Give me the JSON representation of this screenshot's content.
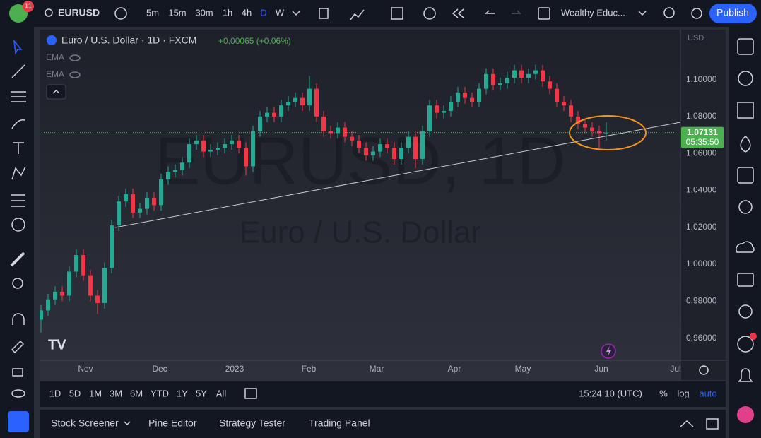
{
  "toolbar": {
    "badge": "11",
    "symbol": "EURUSD",
    "intervals": [
      "5m",
      "15m",
      "30m",
      "1h",
      "4h",
      "D",
      "W"
    ],
    "layout_name": "Wealthy Educ...",
    "publish": "Publish"
  },
  "legend": {
    "title": "Euro / U.S. Dollar · 1D · FXCM",
    "change": "+0.00065 (+0.06%)",
    "indicators": [
      "EMA",
      "EMA"
    ]
  },
  "chart_data": {
    "type": "candlestick",
    "watermark": [
      "EURUSD, 1D",
      "Euro / U.S. Dollar"
    ],
    "currency": "USD",
    "countdown": "05:35:50",
    "up_color": "#22ab94",
    "down_color": "#f23645",
    "last_price_color": "#4caf50",
    "open": [
      0.97,
      0.975,
      0.981,
      0.985,
      0.983,
      0.996,
      1.005,
      0.994,
      0.983,
      0.979,
      0.998,
      1.021,
      1.034,
      1.038,
      1.028,
      1.03,
      1.036,
      1.032,
      1.046,
      1.05,
      1.051,
      1.055,
      1.065,
      1.067,
      1.061,
      1.062,
      1.063,
      1.065,
      1.067,
      1.063,
      1.053,
      1.072,
      1.08,
      1.082,
      1.08,
      1.086,
      1.088,
      1.09,
      1.086,
      1.095,
      1.08,
      1.072,
      1.071,
      1.074,
      1.069,
      1.067,
      1.063,
      1.059,
      1.061,
      1.065,
      1.063,
      1.057,
      1.063,
      1.069,
      1.057,
      1.072,
      1.086,
      1.082,
      1.083,
      1.088,
      1.093,
      1.09,
      1.088,
      1.095,
      1.103,
      1.097,
      1.098,
      1.101,
      1.105,
      1.101,
      1.103,
      1.105,
      1.099,
      1.095,
      1.088,
      1.086,
      1.08,
      1.076,
      1.074,
      1.072,
      1.071
    ],
    "high": [
      0.978,
      0.984,
      0.988,
      0.988,
      0.999,
      1.008,
      1.008,
      0.997,
      0.986,
      1.001,
      1.024,
      1.037,
      1.041,
      1.041,
      1.033,
      1.039,
      1.039,
      1.049,
      1.053,
      1.054,
      1.058,
      1.068,
      1.07,
      1.07,
      1.065,
      1.066,
      1.068,
      1.07,
      1.07,
      1.066,
      1.075,
      1.083,
      1.085,
      1.085,
      1.089,
      1.091,
      1.093,
      1.093,
      1.102,
      1.098,
      1.083,
      1.075,
      1.077,
      1.077,
      1.072,
      1.07,
      1.066,
      1.064,
      1.068,
      1.068,
      1.066,
      1.066,
      1.072,
      1.072,
      1.075,
      1.089,
      1.089,
      1.086,
      1.091,
      1.096,
      1.096,
      1.093,
      1.098,
      1.106,
      1.106,
      1.101,
      1.104,
      1.108,
      1.108,
      1.106,
      1.108,
      1.108,
      1.102,
      1.098,
      1.091,
      1.089,
      1.083,
      1.079,
      1.077,
      1.075,
      1.077
    ],
    "low": [
      0.963,
      0.972,
      0.978,
      0.98,
      0.98,
      0.993,
      0.991,
      0.98,
      0.973,
      0.976,
      0.995,
      1.018,
      1.031,
      1.025,
      1.025,
      1.027,
      1.029,
      1.029,
      1.043,
      1.047,
      1.048,
      1.052,
      1.062,
      1.058,
      1.058,
      1.059,
      1.06,
      1.062,
      1.06,
      1.048,
      1.05,
      1.069,
      1.077,
      1.077,
      1.077,
      1.083,
      1.085,
      1.083,
      1.083,
      1.077,
      1.069,
      1.068,
      1.068,
      1.066,
      1.064,
      1.06,
      1.056,
      1.056,
      1.058,
      1.06,
      1.054,
      1.054,
      1.06,
      1.052,
      1.054,
      1.069,
      1.079,
      1.079,
      1.08,
      1.085,
      1.087,
      1.085,
      1.085,
      1.092,
      1.094,
      1.094,
      1.095,
      1.098,
      1.098,
      1.098,
      1.1,
      1.096,
      1.092,
      1.085,
      1.083,
      1.077,
      1.073,
      1.071,
      1.069,
      1.063,
      1.067
    ],
    "close": [
      0.975,
      0.981,
      0.985,
      0.983,
      0.996,
      1.005,
      0.994,
      0.983,
      0.979,
      0.998,
      1.021,
      1.034,
      1.038,
      1.028,
      1.03,
      1.036,
      1.032,
      1.046,
      1.05,
      1.051,
      1.055,
      1.065,
      1.067,
      1.061,
      1.062,
      1.063,
      1.065,
      1.067,
      1.063,
      1.053,
      1.072,
      1.08,
      1.082,
      1.08,
      1.086,
      1.088,
      1.09,
      1.086,
      1.095,
      1.08,
      1.072,
      1.071,
      1.074,
      1.069,
      1.067,
      1.063,
      1.059,
      1.061,
      1.065,
      1.063,
      1.057,
      1.063,
      1.069,
      1.057,
      1.072,
      1.086,
      1.082,
      1.083,
      1.088,
      1.093,
      1.09,
      1.088,
      1.095,
      1.103,
      1.097,
      1.098,
      1.101,
      1.105,
      1.101,
      1.103,
      1.105,
      1.099,
      1.095,
      1.088,
      1.086,
      1.08,
      1.076,
      1.074,
      1.072,
      1.071,
      1.07131
    ],
    "xlim": [
      -0.2,
      90.5
    ],
    "xticks": [
      {
        "value": 6.3,
        "label": "Nov"
      },
      {
        "value": 16.8,
        "label": "Dec"
      },
      {
        "value": 27.4,
        "label": "2023"
      },
      {
        "value": 37.9,
        "label": "Feb"
      },
      {
        "value": 47.5,
        "label": "Mar"
      },
      {
        "value": 58.5,
        "label": "Apr"
      },
      {
        "value": 68.2,
        "label": "May"
      },
      {
        "value": 79.3,
        "label": "Jun"
      },
      {
        "value": 89.8,
        "label": "Jul"
      }
    ],
    "ylim": [
      0.948,
      1.127
    ],
    "yticks": [
      {
        "value": 1.1,
        "label": "1.10000"
      },
      {
        "value": 1.08,
        "label": "1.08000"
      },
      {
        "value": 1.06,
        "label": "1.06000"
      },
      {
        "value": 1.04,
        "label": "1.04000"
      },
      {
        "value": 1.02,
        "label": "1.02000"
      },
      {
        "value": 1.0,
        "label": "1.00000"
      },
      {
        "value": 0.98,
        "label": "0.98000"
      },
      {
        "value": 0.96,
        "label": "0.96000"
      }
    ],
    "grid": false
  },
  "range_bar": {
    "ranges": [
      "1D",
      "5D",
      "1M",
      "3M",
      "6M",
      "YTD",
      "1Y",
      "5Y",
      "All"
    ],
    "time": "15:24:10 (UTC)",
    "percent": "%",
    "log": "log",
    "auto": "auto"
  },
  "bottom_panel": {
    "tabs": [
      "Stock Screener",
      "Pine Editor",
      "Strategy Tester",
      "Trading Panel"
    ]
  }
}
